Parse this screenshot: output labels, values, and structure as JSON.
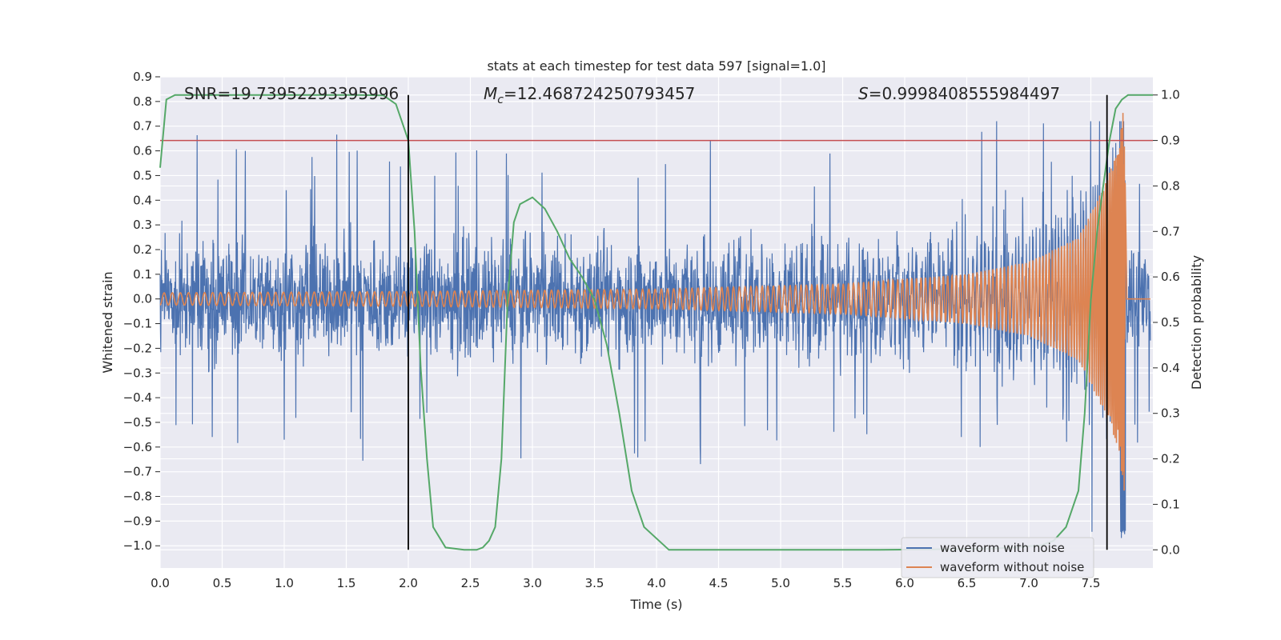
{
  "chart_data": {
    "type": "line",
    "title": "stats at each timestep for test data 597 [signal=1.0]",
    "xlabel": "Time (s)",
    "ylabel_left": "Whitened strain",
    "ylabel_right": "Detection probability",
    "xlim": [
      0.0,
      8.0
    ],
    "ylim_left": [
      -1.09,
      0.9
    ],
    "ylim_right": [
      -0.04,
      1.04
    ],
    "xticks": [
      "0.0",
      "0.5",
      "1.0",
      "1.5",
      "2.0",
      "2.5",
      "3.0",
      "3.5",
      "4.0",
      "4.5",
      "5.0",
      "5.5",
      "6.0",
      "6.5",
      "7.0",
      "7.5"
    ],
    "yticks_left": [
      "0.9",
      "0.8",
      "0.7",
      "0.6",
      "0.5",
      "0.4",
      "0.3",
      "0.2",
      "0.1",
      "0.0",
      "−0.1",
      "−0.2",
      "−0.3",
      "−0.4",
      "−0.5",
      "−0.6",
      "−0.7",
      "−0.8",
      "−0.9",
      "−1.0"
    ],
    "yticks_right": [
      "1.0",
      "0.9",
      "0.8",
      "0.7",
      "0.6",
      "0.5",
      "0.4",
      "0.3",
      "0.2",
      "0.1",
      "0.0"
    ],
    "grid": true,
    "legend_position": "lower-right",
    "annotations": {
      "snr": "SNR=19.73952293395996",
      "mc_symbol": "M",
      "mc_sub": "c",
      "mc_value": "=12.468724250793457",
      "s_symbol": "S",
      "s_value": "=0.9998408555984497"
    },
    "threshold_probability": 0.9,
    "vertical_lines_time": [
      2.0,
      7.63
    ],
    "series": [
      {
        "name": "waveform with noise",
        "color": "#4c72b0",
        "description_values": "noise envelope approx ±0.45 with spikes to 0.69 / -0.78; final spike to -1.0 near t=7.76"
      },
      {
        "name": "waveform without noise",
        "color": "#dd8452",
        "amplitude_envelope": [
          [
            0.0,
            0.025
          ],
          [
            2.0,
            0.03
          ],
          [
            4.0,
            0.04
          ],
          [
            5.5,
            0.06
          ],
          [
            6.5,
            0.1
          ],
          [
            7.0,
            0.15
          ],
          [
            7.4,
            0.25
          ],
          [
            7.6,
            0.45
          ],
          [
            7.72,
            0.6
          ],
          [
            7.77,
            0.8
          ],
          [
            7.79,
            0.02
          ],
          [
            8.0,
            0.0
          ]
        ]
      },
      {
        "name": "detection probability",
        "color": "#55a868",
        "axis": "right",
        "x": [
          0.0,
          0.05,
          0.12,
          0.3,
          0.8,
          1.2,
          1.6,
          1.8,
          1.9,
          1.95,
          2.0,
          2.05,
          2.1,
          2.15,
          2.2,
          2.3,
          2.45,
          2.55,
          2.6,
          2.65,
          2.7,
          2.75,
          2.8,
          2.85,
          2.9,
          3.0,
          3.1,
          3.2,
          3.3,
          3.4,
          3.5,
          3.6,
          3.7,
          3.8,
          3.9,
          4.1,
          5.0,
          5.8,
          6.2,
          6.5,
          6.7,
          6.9,
          7.0,
          7.1,
          7.2,
          7.3,
          7.4,
          7.45,
          7.5,
          7.55,
          7.6,
          7.65,
          7.7,
          7.75,
          7.8,
          8.0
        ],
        "values": [
          0.84,
          0.99,
          1.0,
          1.0,
          1.0,
          1.0,
          1.0,
          0.999,
          0.98,
          0.94,
          0.9,
          0.7,
          0.4,
          0.2,
          0.05,
          0.005,
          0.0,
          0.0,
          0.005,
          0.02,
          0.05,
          0.2,
          0.55,
          0.72,
          0.76,
          0.775,
          0.75,
          0.7,
          0.64,
          0.6,
          0.55,
          0.45,
          0.3,
          0.13,
          0.05,
          0.0,
          0.0,
          0.0,
          0.001,
          0.002,
          0.003,
          0.005,
          0.008,
          0.01,
          0.02,
          0.05,
          0.13,
          0.3,
          0.55,
          0.7,
          0.8,
          0.9,
          0.97,
          0.99,
          1.0,
          1.0
        ]
      }
    ]
  },
  "legend": {
    "items": [
      {
        "label": "waveform with noise",
        "color": "#4c72b0"
      },
      {
        "label": "waveform without noise",
        "color": "#dd8452"
      }
    ]
  },
  "colors": {
    "plot_background": "#eaeaf2",
    "grid": "#ffffff",
    "threshold": "#c44e52",
    "vertical_line": "#000000",
    "probability": "#55a868"
  }
}
